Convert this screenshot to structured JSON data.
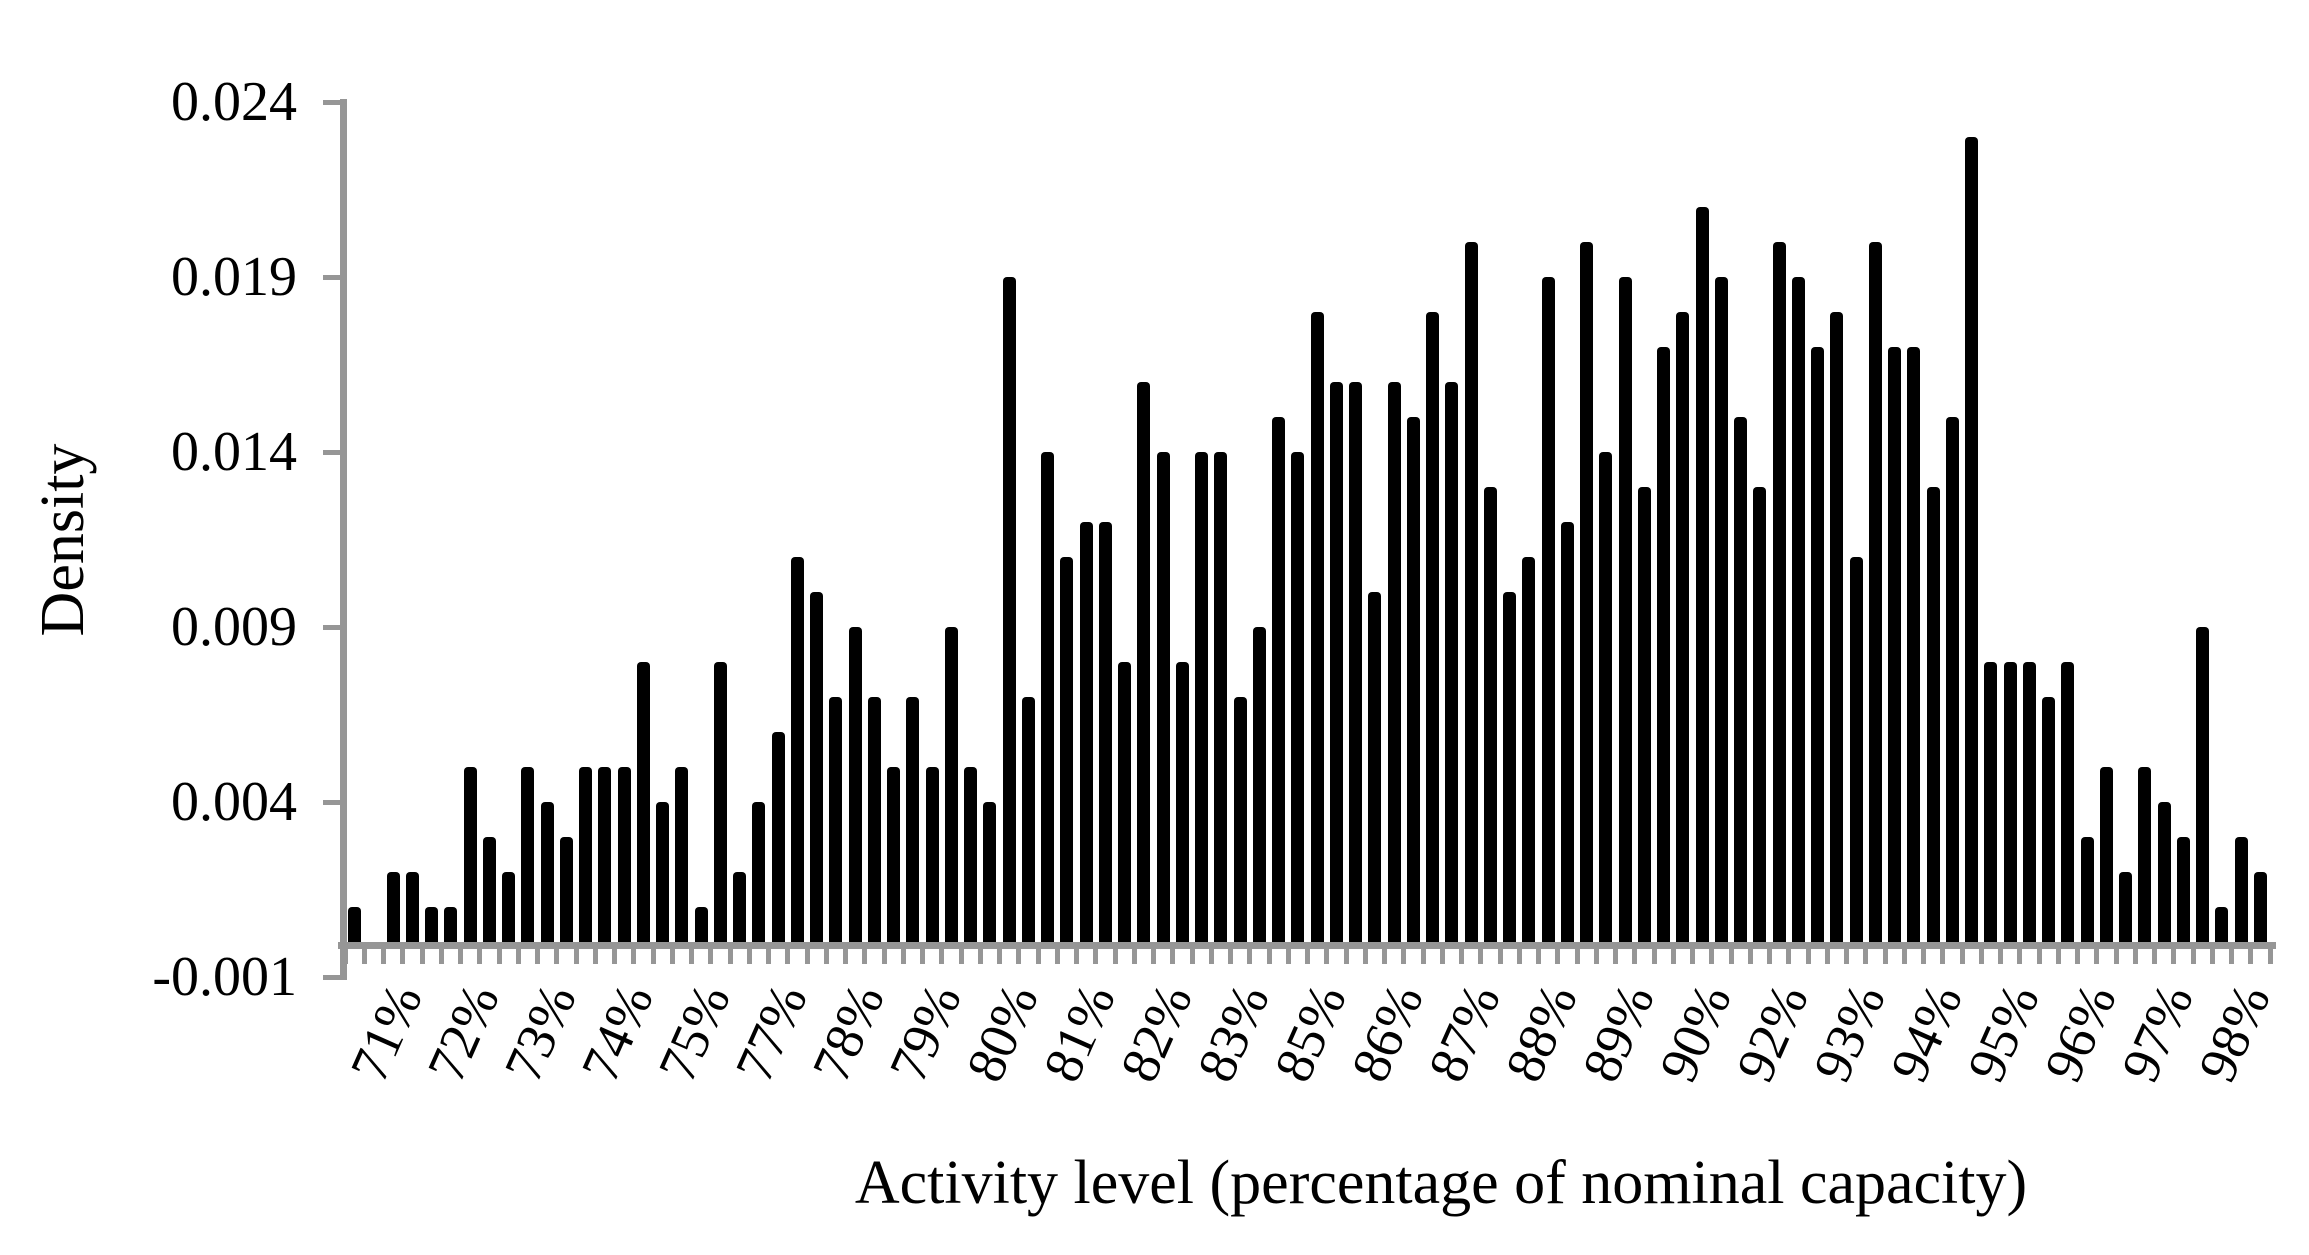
{
  "chart_data": {
    "type": "bar",
    "title": "",
    "xlabel": "Activity level (percentage of nominal capacity)",
    "ylabel": "Density",
    "ylim": [
      -0.001,
      0.024
    ],
    "grid": "off",
    "legend": "none",
    "bar_color": "#000000",
    "axis_color": "#969696",
    "ytick_values": [
      0.024,
      0.019,
      0.014,
      0.009,
      0.004,
      -0.001
    ],
    "ytick_labels": [
      "0.024",
      "0.019",
      "0.014",
      "0.009",
      "0.004",
      "-0.001"
    ],
    "x_label_every_n_bins": 4,
    "x_tick_labels": [
      "71%",
      "72%",
      "73%",
      "74%",
      "75%",
      "77%",
      "78%",
      "79%",
      "80%",
      "81%",
      "82%",
      "83%",
      "85%",
      "86%",
      "87%",
      "88%",
      "89%",
      "90%",
      "92%",
      "93%",
      "94%",
      "95%",
      "96%",
      "97%",
      "98%"
    ],
    "values": [
      0.001,
      0.0,
      0.002,
      0.002,
      0.001,
      0.001,
      0.005,
      0.003,
      0.002,
      0.005,
      0.004,
      0.003,
      0.005,
      0.005,
      0.005,
      0.008,
      0.004,
      0.005,
      0.001,
      0.008,
      0.002,
      0.004,
      0.006,
      0.011,
      0.01,
      0.007,
      0.009,
      0.007,
      0.005,
      0.007,
      0.005,
      0.009,
      0.005,
      0.004,
      0.019,
      0.007,
      0.014,
      0.011,
      0.012,
      0.012,
      0.008,
      0.016,
      0.014,
      0.008,
      0.014,
      0.014,
      0.007,
      0.009,
      0.015,
      0.014,
      0.018,
      0.016,
      0.016,
      0.01,
      0.016,
      0.015,
      0.018,
      0.016,
      0.02,
      0.013,
      0.01,
      0.011,
      0.019,
      0.012,
      0.02,
      0.014,
      0.019,
      0.013,
      0.017,
      0.018,
      0.021,
      0.019,
      0.015,
      0.013,
      0.02,
      0.019,
      0.017,
      0.018,
      0.011,
      0.02,
      0.017,
      0.017,
      0.013,
      0.015,
      0.023,
      0.008,
      0.008,
      0.008,
      0.007,
      0.008,
      0.003,
      0.005,
      0.002,
      0.005,
      0.004,
      0.003,
      0.009,
      0.001,
      0.003,
      0.002
    ]
  }
}
